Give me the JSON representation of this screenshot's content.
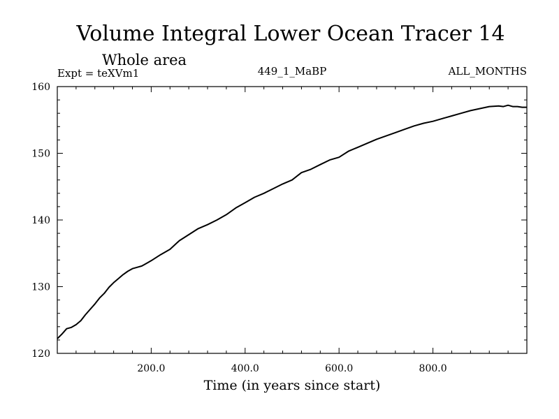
{
  "chart_data": {
    "type": "line",
    "title": "Volume Integral Lower Ocean Tracer 14",
    "subtitle": "Whole area",
    "expt_label": "Expt = teXVm1",
    "run_label": "449_1_MaBP",
    "months_label": "ALL_MONTHS",
    "xlabel": "Time (in years since start)",
    "ylabel": "",
    "xlim": [
      0,
      1000
    ],
    "ylim": [
      120,
      160
    ],
    "x_ticks": [
      200,
      400,
      600,
      800
    ],
    "x_tick_labels": [
      "200.0",
      "400.0",
      "600.0",
      "800.0"
    ],
    "y_ticks": [
      120,
      130,
      140,
      150,
      160
    ],
    "y_tick_labels": [
      "120",
      "130",
      "140",
      "150",
      "160"
    ],
    "grid": false,
    "series": [
      {
        "name": "Lower Ocean Tracer 14",
        "color": "#000000",
        "x": [
          0,
          10,
          20,
          30,
          40,
          50,
          60,
          70,
          80,
          90,
          100,
          110,
          120,
          130,
          140,
          150,
          160,
          170,
          180,
          190,
          200,
          220,
          240,
          260,
          280,
          300,
          320,
          340,
          360,
          380,
          400,
          420,
          440,
          460,
          480,
          500,
          520,
          540,
          560,
          580,
          600,
          620,
          640,
          660,
          680,
          700,
          720,
          740,
          760,
          780,
          800,
          820,
          840,
          860,
          880,
          900,
          920,
          940,
          950,
          960,
          970,
          980,
          990,
          1000
        ],
        "values": [
          122.2,
          122.9,
          123.7,
          123.9,
          124.3,
          124.9,
          125.8,
          126.6,
          127.4,
          128.3,
          129.0,
          129.9,
          130.6,
          131.2,
          131.8,
          132.3,
          132.7,
          132.9,
          133.1,
          133.5,
          133.9,
          134.8,
          135.6,
          136.9,
          137.8,
          138.7,
          139.3,
          140.0,
          140.8,
          141.8,
          142.6,
          143.4,
          144.0,
          144.7,
          145.4,
          146.0,
          147.1,
          147.6,
          148.3,
          149.0,
          149.4,
          150.3,
          150.9,
          151.5,
          152.1,
          152.6,
          153.1,
          153.6,
          154.1,
          154.5,
          154.8,
          155.2,
          155.6,
          156.0,
          156.4,
          156.7,
          157.0,
          157.1,
          157.0,
          157.2,
          157.0,
          157.0,
          156.9,
          156.9
        ]
      }
    ]
  }
}
